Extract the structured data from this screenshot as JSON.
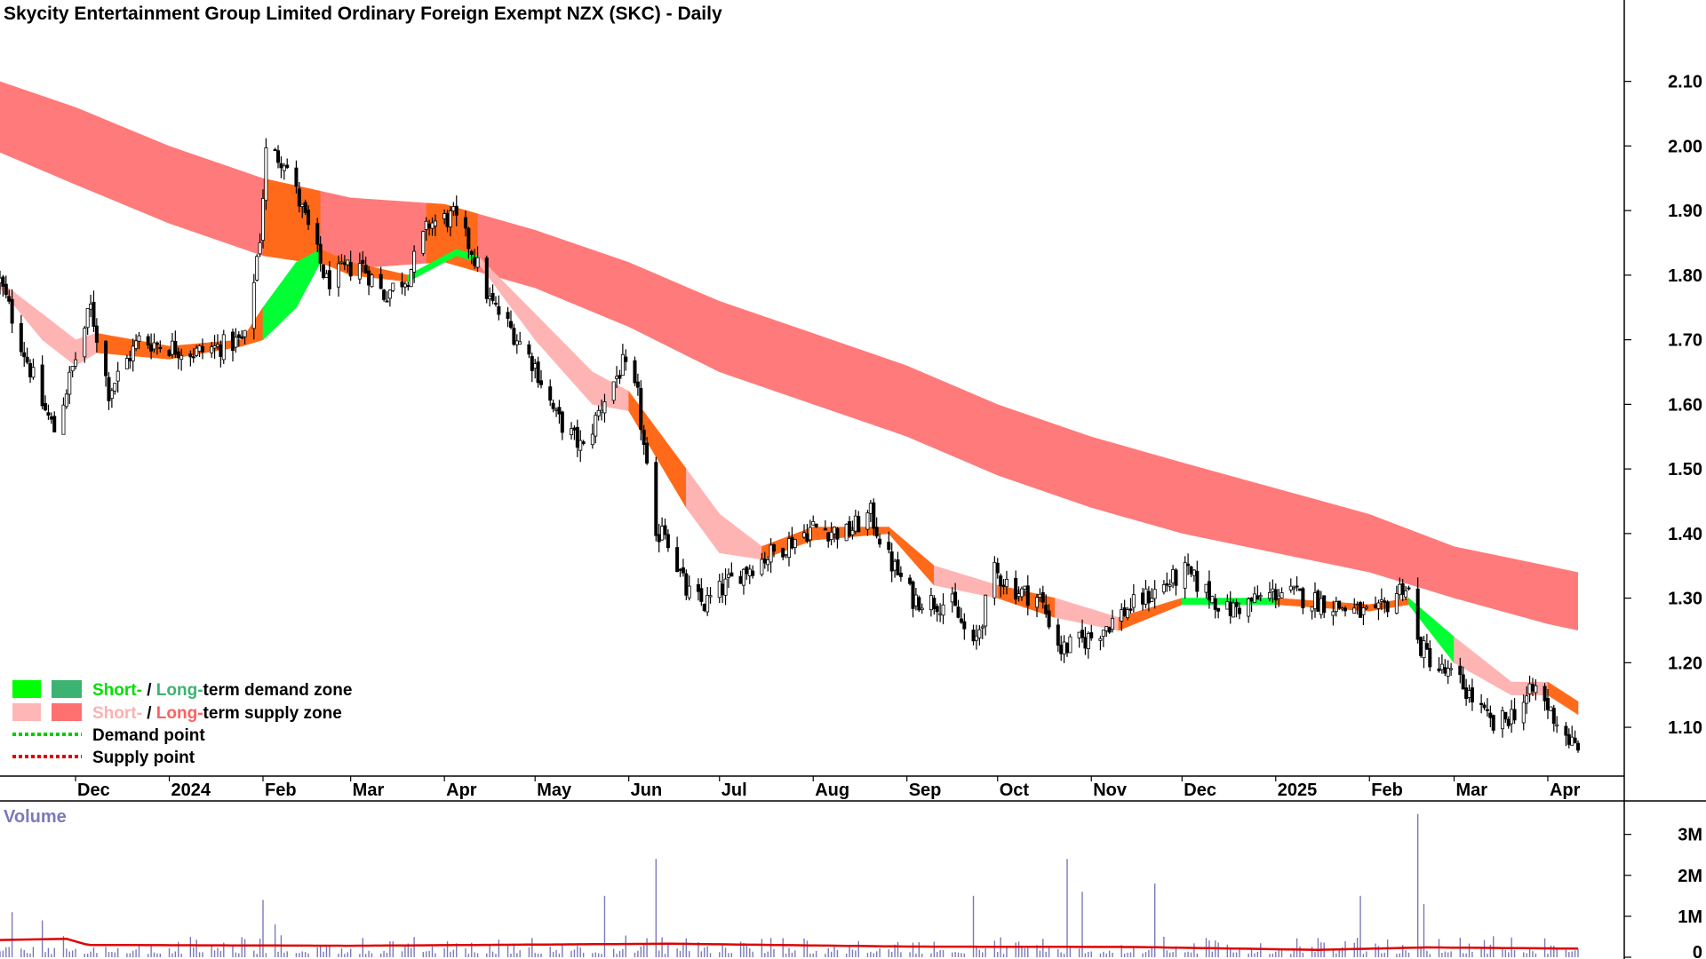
{
  "chart_data": [
    {
      "type": "candlestick",
      "title": "Skycity Entertainment Group Limited Ordinary Foreign Exempt NZX (SKC) - Daily",
      "x_tick_labels": [
        "Dec",
        "2024",
        "Feb",
        "Mar",
        "Apr",
        "May",
        "Jun",
        "Jul",
        "Aug",
        "Sep",
        "Oct",
        "Nov",
        "Dec",
        "2025",
        "Feb",
        "Mar",
        "Apr"
      ],
      "x_tick_dates": [
        "2023-12-01",
        "2024-01-01",
        "2024-02-01",
        "2024-03-01",
        "2024-04-01",
        "2024-05-01",
        "2024-06-01",
        "2024-07-01",
        "2024-08-01",
        "2024-09-01",
        "2024-10-01",
        "2024-11-01",
        "2024-12-01",
        "2025-01-01",
        "2025-02-01",
        "2025-03-01",
        "2025-04-01"
      ],
      "y_tick_labels": [
        "2.10",
        "2.00",
        "1.90",
        "1.80",
        "1.70",
        "1.60",
        "1.50",
        "1.40",
        "1.30",
        "1.20",
        "1.10"
      ],
      "ylim": [
        1.03,
        2.16
      ],
      "date_range": [
        "2023-11-06",
        "2025-04-11"
      ],
      "grid": false,
      "price_keypoints": [
        {
          "date": "2023-11-06",
          "price": 1.79
        },
        {
          "date": "2023-11-20",
          "price": 1.6
        },
        {
          "date": "2023-11-24",
          "price": 1.56
        },
        {
          "date": "2023-12-06",
          "price": 1.75
        },
        {
          "date": "2023-12-12",
          "price": 1.62
        },
        {
          "date": "2023-12-22",
          "price": 1.7
        },
        {
          "date": "2024-01-10",
          "price": 1.68
        },
        {
          "date": "2024-01-26",
          "price": 1.7
        },
        {
          "date": "2024-01-31",
          "price": 1.86
        },
        {
          "date": "2024-02-02",
          "price": 1.99
        },
        {
          "date": "2024-02-08",
          "price": 1.98
        },
        {
          "date": "2024-02-14",
          "price": 1.9
        },
        {
          "date": "2024-02-22",
          "price": 1.79
        },
        {
          "date": "2024-03-04",
          "price": 1.82
        },
        {
          "date": "2024-03-12",
          "price": 1.77
        },
        {
          "date": "2024-03-20",
          "price": 1.8
        },
        {
          "date": "2024-03-27",
          "price": 1.88
        },
        {
          "date": "2024-04-04",
          "price": 1.89
        },
        {
          "date": "2024-04-10",
          "price": 1.84
        },
        {
          "date": "2024-04-16",
          "price": 1.76
        },
        {
          "date": "2024-04-24",
          "price": 1.71
        },
        {
          "date": "2024-05-01",
          "price": 1.66
        },
        {
          "date": "2024-05-08",
          "price": 1.58
        },
        {
          "date": "2024-05-17",
          "price": 1.53
        },
        {
          "date": "2024-05-24",
          "price": 1.61
        },
        {
          "date": "2024-05-30",
          "price": 1.66
        },
        {
          "date": "2024-06-04",
          "price": 1.61
        },
        {
          "date": "2024-06-10",
          "price": 1.38
        },
        {
          "date": "2024-06-12",
          "price": 1.42
        },
        {
          "date": "2024-06-20",
          "price": 1.31
        },
        {
          "date": "2024-06-26",
          "price": 1.29
        },
        {
          "date": "2024-07-08",
          "price": 1.34
        },
        {
          "date": "2024-07-22",
          "price": 1.38
        },
        {
          "date": "2024-08-01",
          "price": 1.41
        },
        {
          "date": "2024-08-12",
          "price": 1.4
        },
        {
          "date": "2024-08-20",
          "price": 1.43
        },
        {
          "date": "2024-08-26",
          "price": 1.36
        },
        {
          "date": "2024-09-03",
          "price": 1.3
        },
        {
          "date": "2024-09-16",
          "price": 1.29
        },
        {
          "date": "2024-09-23",
          "price": 1.22
        },
        {
          "date": "2024-09-30",
          "price": 1.34
        },
        {
          "date": "2024-10-08",
          "price": 1.31
        },
        {
          "date": "2024-10-15",
          "price": 1.3
        },
        {
          "date": "2024-10-22",
          "price": 1.22
        },
        {
          "date": "2024-11-01",
          "price": 1.24
        },
        {
          "date": "2024-11-12",
          "price": 1.28
        },
        {
          "date": "2024-11-22",
          "price": 1.31
        },
        {
          "date": "2024-12-02",
          "price": 1.34
        },
        {
          "date": "2024-12-16",
          "price": 1.28
        },
        {
          "date": "2025-01-02",
          "price": 1.31
        },
        {
          "date": "2025-01-20",
          "price": 1.29
        },
        {
          "date": "2025-02-03",
          "price": 1.27
        },
        {
          "date": "2025-02-12",
          "price": 1.32
        },
        {
          "date": "2025-02-14",
          "price": 1.31
        },
        {
          "date": "2025-02-17",
          "price": 1.23
        },
        {
          "date": "2025-02-24",
          "price": 1.19
        },
        {
          "date": "2025-03-03",
          "price": 1.17
        },
        {
          "date": "2025-03-14",
          "price": 1.1
        },
        {
          "date": "2025-03-20",
          "price": 1.12
        },
        {
          "date": "2025-03-28",
          "price": 1.16
        },
        {
          "date": "2025-04-04",
          "price": 1.11
        },
        {
          "date": "2025-04-11",
          "price": 1.06
        }
      ],
      "long_term_supply_zone": [
        {
          "date": "2023-11-06",
          "top": 2.1,
          "bottom": 1.99
        },
        {
          "date": "2023-12-01",
          "top": 2.06,
          "bottom": 1.94
        },
        {
          "date": "2024-01-01",
          "top": 2.0,
          "bottom": 1.88
        },
        {
          "date": "2024-02-01",
          "top": 1.95,
          "bottom": 1.83
        },
        {
          "date": "2024-03-01",
          "top": 1.92,
          "bottom": 1.81
        },
        {
          "date": "2024-04-01",
          "top": 1.91,
          "bottom": 1.82
        },
        {
          "date": "2024-05-01",
          "top": 1.87,
          "bottom": 1.78
        },
        {
          "date": "2024-06-01",
          "top": 1.82,
          "bottom": 1.72
        },
        {
          "date": "2024-07-01",
          "top": 1.76,
          "bottom": 1.65
        },
        {
          "date": "2024-08-01",
          "top": 1.71,
          "bottom": 1.6
        },
        {
          "date": "2024-09-01",
          "top": 1.66,
          "bottom": 1.55
        },
        {
          "date": "2024-10-01",
          "top": 1.6,
          "bottom": 1.49
        },
        {
          "date": "2024-11-01",
          "top": 1.55,
          "bottom": 1.44
        },
        {
          "date": "2024-12-01",
          "top": 1.51,
          "bottom": 1.4
        },
        {
          "date": "2025-01-01",
          "top": 1.47,
          "bottom": 1.37
        },
        {
          "date": "2025-02-01",
          "top": 1.43,
          "bottom": 1.34
        },
        {
          "date": "2025-03-01",
          "top": 1.38,
          "bottom": 1.3
        },
        {
          "date": "2025-04-01",
          "top": 1.35,
          "bottom": 1.26
        },
        {
          "date": "2025-04-11",
          "top": 1.34,
          "bottom": 1.25
        }
      ],
      "short_term_zone": [
        {
          "date": "2023-11-06",
          "a": 1.79,
          "b": 1.78,
          "zone": "supply"
        },
        {
          "date": "2023-11-20",
          "a": 1.74,
          "b": 1.7,
          "zone": "supply"
        },
        {
          "date": "2023-12-01",
          "a": 1.7,
          "b": 1.66,
          "zone": "supply"
        },
        {
          "date": "2023-12-08",
          "a": 1.71,
          "b": 1.68,
          "zone": "mixed"
        },
        {
          "date": "2024-01-01",
          "a": 1.69,
          "b": 1.67,
          "zone": "mixed"
        },
        {
          "date": "2024-01-25",
          "a": 1.7,
          "b": 1.69,
          "zone": "mixed"
        },
        {
          "date": "2024-02-01",
          "a": 1.75,
          "b": 1.7,
          "zone": "demand"
        },
        {
          "date": "2024-02-12",
          "a": 1.82,
          "b": 1.75,
          "zone": "demand"
        },
        {
          "date": "2024-02-20",
          "a": 1.84,
          "b": 1.82,
          "zone": "mixed"
        },
        {
          "date": "2024-03-01",
          "a": 1.82,
          "b": 1.8,
          "zone": "mixed"
        },
        {
          "date": "2024-03-20",
          "a": 1.8,
          "b": 1.79,
          "zone": "demand"
        },
        {
          "date": "2024-04-05",
          "a": 1.84,
          "b": 1.83,
          "zone": "demand"
        },
        {
          "date": "2024-04-12",
          "a": 1.83,
          "b": 1.82,
          "zone": "supply"
        },
        {
          "date": "2024-05-01",
          "a": 1.74,
          "b": 1.7,
          "zone": "supply"
        },
        {
          "date": "2024-05-20",
          "a": 1.65,
          "b": 1.6,
          "zone": "supply"
        },
        {
          "date": "2024-06-01",
          "a": 1.62,
          "b": 1.59,
          "zone": "mixed"
        },
        {
          "date": "2024-06-20",
          "a": 1.5,
          "b": 1.44,
          "zone": "supply"
        },
        {
          "date": "2024-07-01",
          "a": 1.43,
          "b": 1.37,
          "zone": "supply"
        },
        {
          "date": "2024-07-15",
          "a": 1.38,
          "b": 1.36,
          "zone": "mixed"
        },
        {
          "date": "2024-08-01",
          "a": 1.41,
          "b": 1.39,
          "zone": "mixed"
        },
        {
          "date": "2024-08-26",
          "a": 1.41,
          "b": 1.4,
          "zone": "mixed"
        },
        {
          "date": "2024-09-10",
          "a": 1.35,
          "b": 1.32,
          "zone": "supply"
        },
        {
          "date": "2024-10-01",
          "a": 1.32,
          "b": 1.3,
          "zone": "mixed"
        },
        {
          "date": "2024-10-20",
          "a": 1.3,
          "b": 1.27,
          "zone": "supply"
        },
        {
          "date": "2024-11-10",
          "a": 1.27,
          "b": 1.25,
          "zone": "mixed"
        },
        {
          "date": "2024-12-01",
          "a": 1.3,
          "b": 1.29,
          "zone": "demand"
        },
        {
          "date": "2025-01-01",
          "a": 1.3,
          "b": 1.29,
          "zone": "mixed"
        },
        {
          "date": "2025-02-01",
          "a": 1.29,
          "b": 1.28,
          "zone": "mixed"
        },
        {
          "date": "2025-02-14",
          "a": 1.3,
          "b": 1.29,
          "zone": "demand"
        },
        {
          "date": "2025-03-01",
          "a": 1.24,
          "b": 1.2,
          "zone": "supply"
        },
        {
          "date": "2025-03-20",
          "a": 1.17,
          "b": 1.15,
          "zone": "supply"
        },
        {
          "date": "2025-04-01",
          "a": 1.17,
          "b": 1.15,
          "zone": "mixed"
        },
        {
          "date": "2025-04-11",
          "a": 1.14,
          "b": 1.12,
          "zone": "supply"
        }
      ],
      "long_term_zone_overlap_periods": [
        {
          "start": "2024-02-01",
          "end": "2024-02-20"
        },
        {
          "start": "2024-03-26",
          "end": "2024-04-12"
        }
      ]
    },
    {
      "type": "bar",
      "title": "Volume",
      "y_tick_labels": [
        "3M",
        "2M",
        "1M",
        "0"
      ],
      "ylim": [
        0,
        3600000
      ],
      "base_volume_range": [
        80000,
        400000
      ],
      "volume_spikes": [
        {
          "date": "2023-11-10",
          "volume": 1100000
        },
        {
          "date": "2023-11-20",
          "volume": 900000
        },
        {
          "date": "2024-02-01",
          "volume": 1400000
        },
        {
          "date": "2024-02-05",
          "volume": 800000
        },
        {
          "date": "2024-05-24",
          "volume": 1500000
        },
        {
          "date": "2024-06-10",
          "volume": 2400000
        },
        {
          "date": "2024-09-23",
          "volume": 1500000
        },
        {
          "date": "2024-10-24",
          "volume": 2400000
        },
        {
          "date": "2024-10-29",
          "volume": 1600000
        },
        {
          "date": "2024-11-22",
          "volume": 1800000
        },
        {
          "date": "2025-01-29",
          "volume": 1500000
        },
        {
          "date": "2025-02-17",
          "volume": 3500000
        },
        {
          "date": "2025-02-19",
          "volume": 1300000
        }
      ],
      "moving_average": [
        {
          "date": "2023-11-06",
          "value": 420000
        },
        {
          "date": "2023-11-28",
          "value": 450000
        },
        {
          "date": "2023-12-05",
          "value": 300000
        },
        {
          "date": "2024-03-01",
          "value": 280000
        },
        {
          "date": "2024-06-15",
          "value": 330000
        },
        {
          "date": "2024-09-01",
          "value": 260000
        },
        {
          "date": "2024-11-15",
          "value": 250000
        },
        {
          "date": "2025-01-15",
          "value": 180000
        },
        {
          "date": "2025-02-20",
          "value": 240000
        },
        {
          "date": "2025-04-11",
          "value": 210000
        }
      ]
    }
  ],
  "legend": [
    {
      "label_short": "Short-",
      "separator": " / ",
      "label_long": "Long-",
      "label_rest": "term demand zone",
      "short_color": "#00ff00",
      "long_color": "#3cb371"
    },
    {
      "label_short": "Short-",
      "separator": " / ",
      "label_long": "Long-",
      "label_rest": "term supply zone",
      "short_color": "#ffb6b6",
      "long_color": "#ff7070"
    },
    {
      "label": "Demand point",
      "color": "#00cc00"
    },
    {
      "label": "Supply point",
      "color": "#dd0000"
    }
  ],
  "colors": {
    "long_supply": "#ff7a7a",
    "short_supply": "#ffb4b4",
    "short_demand": "#00ff33",
    "overlap": "#ff6a1a",
    "candle": "#000000",
    "volume_bar": "#7a7ab8",
    "volume_ma": "#e00000",
    "demand_text": "#00e000",
    "long_demand_text": "#3cb371",
    "supply_text_short": "#ffb0b0",
    "supply_text_long": "#ff6060"
  }
}
